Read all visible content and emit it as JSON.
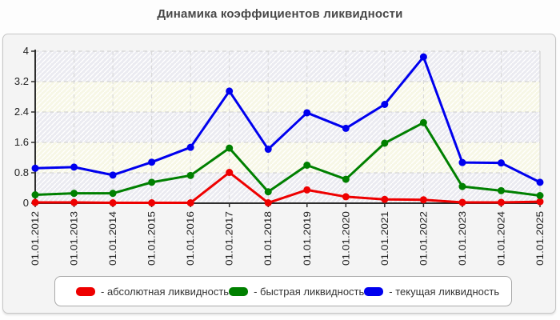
{
  "page": {
    "title": "Динамика коэффициентов ликвидности"
  },
  "chart_data": {
    "type": "line",
    "title": "Динамика коэффициентов ликвидности",
    "x_labels": [
      "01.01.2012",
      "01.01.2013",
      "01.01.2014",
      "01.01.2015",
      "01.01.2016",
      "01.01.2017",
      "01.01.2018",
      "01.01.2019",
      "01.01.2020",
      "01.01.2021",
      "01.01.2022",
      "01.01.2023",
      "01.01.2024",
      "01.01.2025"
    ],
    "y_ticks": [
      0,
      0.8,
      1.6,
      2.4,
      3.2,
      4
    ],
    "y_tick_labels": [
      "0",
      "0.8",
      "1.6",
      "2.4",
      "3.2",
      "4"
    ],
    "ylim": [
      0,
      4
    ],
    "grid": true,
    "legend_position": "bottom",
    "band_colors": [
      "#ebebf1",
      "#f7f7e6"
    ],
    "series": [
      {
        "name": "абсолютная ликвидность",
        "color": "#ee0000",
        "values": [
          0.02,
          0.02,
          0.01,
          0.01,
          0.01,
          0.81,
          0.01,
          0.35,
          0.17,
          0.1,
          0.09,
          0.02,
          0.02,
          0.04
        ]
      },
      {
        "name": "быстрая ликвидность",
        "color": "#008000",
        "values": [
          0.22,
          0.26,
          0.26,
          0.55,
          0.73,
          1.45,
          0.3,
          1.0,
          0.63,
          1.58,
          2.12,
          0.44,
          0.33,
          0.2
        ]
      },
      {
        "name": "текущая ликвидность",
        "color": "#0000ee",
        "values": [
          0.92,
          0.95,
          0.74,
          1.08,
          1.47,
          2.95,
          1.42,
          2.38,
          1.97,
          2.6,
          3.85,
          1.07,
          1.06,
          0.55
        ]
      }
    ]
  },
  "legend": {
    "items": [
      {
        "label": "- абсолютная ликвидность",
        "color": "#ee0000"
      },
      {
        "label": "- быстрая ликвидность",
        "color": "#008000"
      },
      {
        "label": "- текущая ликвидность",
        "color": "#0000ee"
      }
    ]
  }
}
